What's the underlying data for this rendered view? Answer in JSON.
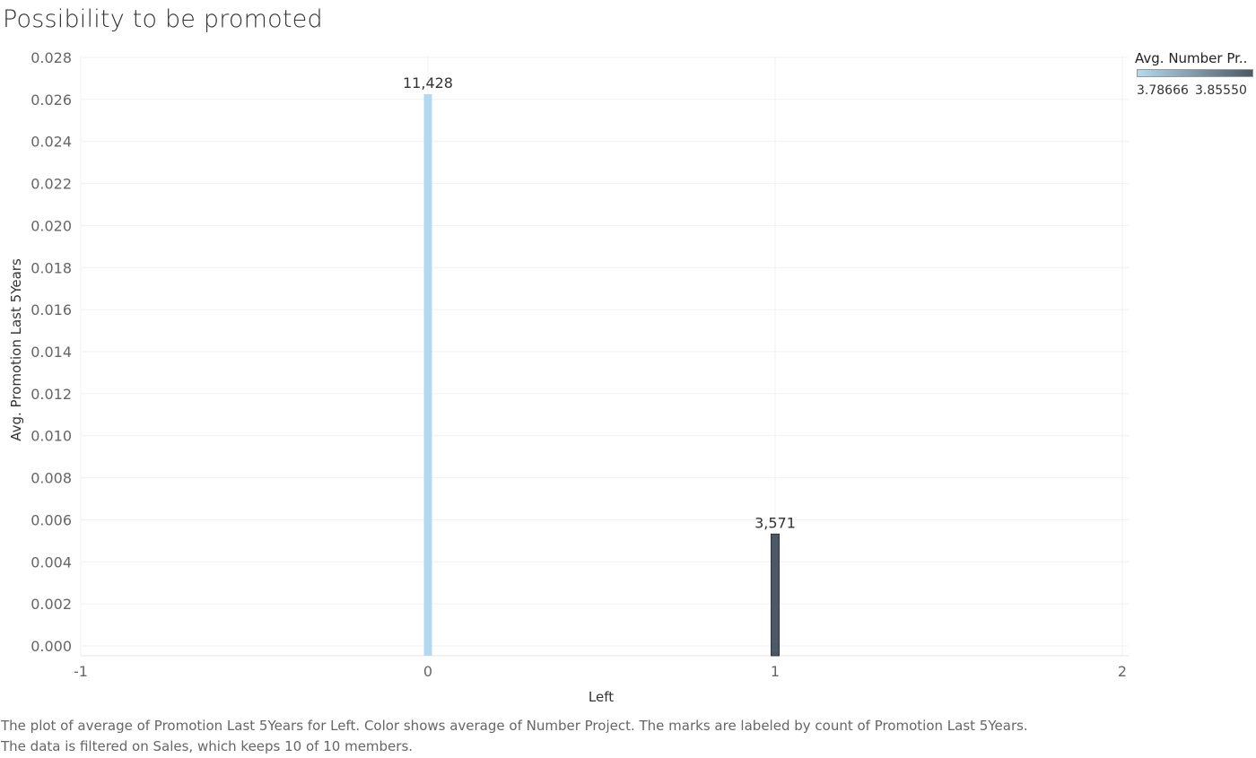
{
  "chart_data": {
    "type": "bar",
    "title": "Possibility to be promoted",
    "xlabel": "Left",
    "ylabel": "Avg. Promotion Last 5Years",
    "xlim": [
      -1,
      2
    ],
    "ylim": [
      0,
      0.028
    ],
    "x_ticks": [
      "-1",
      "0",
      "1",
      "2"
    ],
    "y_ticks": [
      "0.000",
      "0.002",
      "0.004",
      "0.006",
      "0.008",
      "0.010",
      "0.012",
      "0.014",
      "0.016",
      "0.018",
      "0.020",
      "0.022",
      "0.024",
      "0.026",
      "0.028"
    ],
    "bars": [
      {
        "x": 0,
        "value": 0.02625,
        "label": "11,428",
        "color": "#b4d9ee"
      },
      {
        "x": 1,
        "value": 0.00532,
        "label": "3,571",
        "color": "#4c5866"
      }
    ],
    "grid": true,
    "legend": {
      "title": "Avg. Number Pr..",
      "min_label": "3.78666",
      "max_label": "3.85550",
      "color_min": "#b4d9ee",
      "color_max": "#4c5866",
      "placement": "top-right"
    }
  },
  "caption": {
    "line1": "The plot of average of Promotion Last 5Years for Left.  Color shows average of Number Project.  The marks are labeled by count of Promotion Last 5Years.",
    "line2": "The data is filtered on Sales, which keeps 10 of 10 members."
  }
}
